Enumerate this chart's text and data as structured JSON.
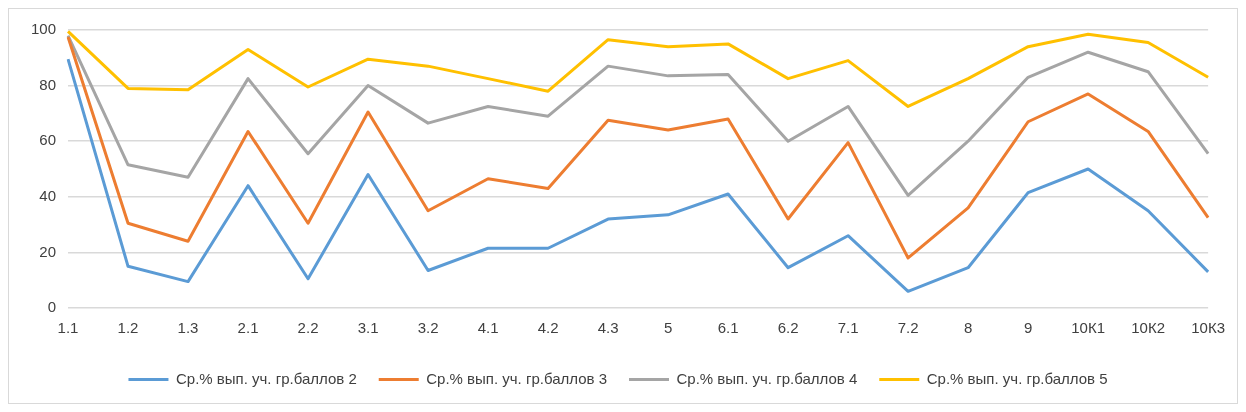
{
  "chart_data": {
    "type": "line",
    "categories": [
      "1.1",
      "1.2",
      "1.3",
      "2.1",
      "2.2",
      "3.1",
      "3.2",
      "4.1",
      "4.2",
      "4.3",
      "5",
      "6.1",
      "6.2",
      "7.1",
      "7.2",
      "8",
      "9",
      "10К1",
      "10К2",
      "10К3"
    ],
    "series": [
      {
        "name": "Ср.% вып. уч. гр.баллов 2",
        "color": "#5b9bd5",
        "values": [
          89.5,
          15,
          9.5,
          44,
          10.5,
          48,
          13.5,
          21.5,
          21.5,
          32,
          33.5,
          41,
          14.5,
          26,
          6,
          14.5,
          41.5,
          50,
          35,
          13
        ]
      },
      {
        "name": "Ср.% вып. уч. гр.баллов 3",
        "color": "#ed7d31",
        "values": [
          97.5,
          30.5,
          24,
          63.5,
          30.5,
          70.5,
          35,
          46.5,
          43,
          67.5,
          64,
          68,
          32,
          59.5,
          18,
          36,
          67,
          77,
          63.5,
          32.5
        ]
      },
      {
        "name": "Ср.% вып. уч. гр.баллов 4",
        "color": "#a5a5a5",
        "values": [
          98,
          51.5,
          47,
          82.5,
          55.5,
          80,
          66.5,
          72.5,
          69,
          87,
          83.5,
          84,
          60,
          72.5,
          40.5,
          60,
          83,
          92,
          85,
          55.5
        ]
      },
      {
        "name": "Ср.% вып. уч. гр.баллов 5",
        "color": "#ffc000",
        "values": [
          99.5,
          79,
          78.5,
          93,
          79.5,
          89.5,
          87,
          82.5,
          78,
          96.5,
          94,
          95,
          82.5,
          89,
          72.5,
          82.5,
          94,
          98.5,
          95.5,
          83
        ]
      }
    ],
    "ylim": [
      0,
      100
    ],
    "yticks": [
      0,
      20,
      40,
      60,
      80,
      100
    ],
    "grid": "y",
    "legend": "bottom",
    "marker": "none",
    "line_style": "solid"
  }
}
